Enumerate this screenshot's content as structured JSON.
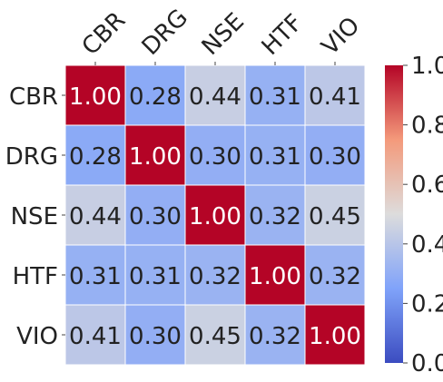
{
  "chart_data": {
    "type": "heatmap",
    "title": "",
    "xlabel": "",
    "ylabel": "",
    "x_categories": [
      "CBR",
      "DRG",
      "NSE",
      "HTF",
      "VIO"
    ],
    "y_categories": [
      "CBR",
      "DRG",
      "NSE",
      "HTF",
      "VIO"
    ],
    "values": [
      [
        1.0,
        0.28,
        0.44,
        0.31,
        0.41
      ],
      [
        0.28,
        1.0,
        0.3,
        0.31,
        0.3
      ],
      [
        0.44,
        0.3,
        1.0,
        0.32,
        0.45
      ],
      [
        0.31,
        0.31,
        0.32,
        1.0,
        0.32
      ],
      [
        0.41,
        0.3,
        0.45,
        0.32,
        1.0
      ]
    ],
    "annotation_format": "0.00",
    "colorbar": {
      "range": [
        0.0,
        1.0
      ],
      "ticks": [
        "0.0",
        "0.2",
        "0.4",
        "0.6",
        "0.8",
        "1.0"
      ],
      "colormap": "coolwarm",
      "position": "right"
    },
    "colors": {
      "low": "#3b4cc0",
      "mid": "#dddcdc",
      "high": "#b40426",
      "cell_border": "#ffffff"
    }
  }
}
